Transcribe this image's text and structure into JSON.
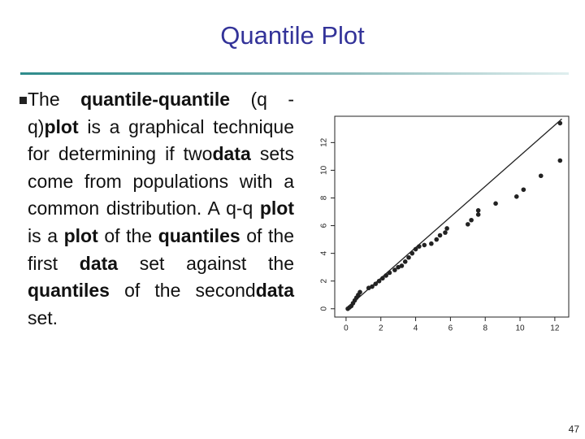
{
  "slide": {
    "title": "Quantile Plot",
    "bullet_runs": [
      {
        "text": "The ",
        "bold": false
      },
      {
        "text": "quantile-quantile",
        "bold": true
      },
      {
        "text": " (q -q)",
        "bold": false
      },
      {
        "text": "plot",
        "bold": true
      },
      {
        "text": " is a graphical technique for determining if two",
        "bold": false
      },
      {
        "text": "data",
        "bold": true
      },
      {
        "text": " sets come from populations with a common distribution. A q-q ",
        "bold": false
      },
      {
        "text": "plot",
        "bold": true
      },
      {
        "text": " is a ",
        "bold": false
      },
      {
        "text": "plot",
        "bold": true
      },
      {
        "text": " of the ",
        "bold": false
      },
      {
        "text": "quantiles",
        "bold": true
      },
      {
        "text": " of the first ",
        "bold": false
      },
      {
        "text": "data",
        "bold": true
      },
      {
        "text": " set against the ",
        "bold": false
      },
      {
        "text": "quantiles",
        "bold": true
      },
      {
        "text": " of the second",
        "bold": false
      },
      {
        "text": "data",
        "bold": true
      },
      {
        "text": " set.",
        "bold": false
      }
    ],
    "page_number": "47"
  },
  "chart_data": {
    "type": "scatter",
    "x": [
      12.3,
      12.3,
      11.2,
      10.2,
      9.8,
      8.6,
      7.6,
      7.6,
      7.2,
      7.0,
      5.8,
      5.7,
      5.4,
      5.2,
      4.9,
      4.5,
      4.2,
      4.0,
      3.8,
      3.6,
      3.4,
      3.2,
      3.0,
      2.8,
      2.5,
      2.3,
      2.1,
      1.9,
      1.7,
      1.5,
      1.3,
      0.8,
      0.7,
      0.6,
      0.5,
      0.4,
      0.3,
      0.2,
      0.1
    ],
    "values": [
      13.4,
      10.7,
      9.6,
      8.6,
      8.1,
      7.6,
      7.1,
      6.8,
      6.4,
      6.1,
      5.8,
      5.5,
      5.3,
      5.0,
      4.7,
      4.6,
      4.5,
      4.3,
      4.0,
      3.7,
      3.4,
      3.1,
      3.0,
      2.8,
      2.6,
      2.4,
      2.2,
      2.0,
      1.8,
      1.6,
      1.5,
      1.2,
      1.0,
      0.8,
      0.6,
      0.4,
      0.2,
      0.1,
      0.0
    ],
    "color": "#222222",
    "reference_line": {
      "x": [
        0,
        12.4
      ],
      "y": [
        0,
        13.7
      ]
    },
    "xlim": [
      -0.65,
      12.8
    ],
    "ylim": [
      -0.6,
      13.9
    ],
    "xticks": [
      0,
      2,
      4,
      6,
      8,
      10,
      12
    ],
    "yticks": [
      0,
      2,
      4,
      6,
      8,
      10,
      12
    ]
  }
}
